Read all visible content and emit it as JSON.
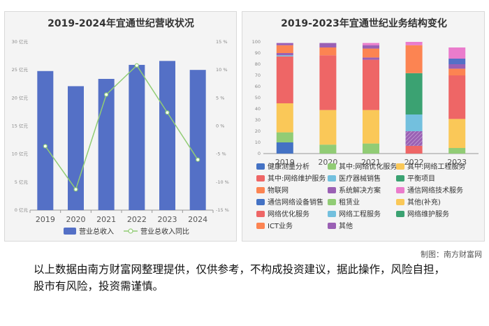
{
  "chart_data": [
    {
      "type": "bar",
      "title": "2019-2024年宜通世纪营收状况",
      "categories": [
        "2019",
        "2020",
        "2021",
        "2022",
        "2023",
        "2024"
      ],
      "series": [
        {
          "name": "营业总收入",
          "kind": "bar",
          "axis": "left",
          "color": "#5470c6",
          "values": [
            24.8,
            22.1,
            23.4,
            25.9,
            26.6,
            25.0
          ]
        },
        {
          "name": "营业总收入同比",
          "kind": "line",
          "axis": "right",
          "color": "#91cc75",
          "values": [
            -3.6,
            -11.3,
            5.6,
            10.8,
            2.4,
            -6.0
          ]
        }
      ],
      "y_left": {
        "min": 0,
        "max": 30,
        "ticks": [
          "0 亿元",
          "5 亿元",
          "10 亿元",
          "15 亿元",
          "20 亿元",
          "25 亿元",
          "30 亿元"
        ]
      },
      "y_right": {
        "min": -15,
        "max": 15,
        "ticks": [
          "-15 %",
          "-10 %",
          "-5 %",
          "0 %",
          "5 %",
          "10 %",
          "15 %"
        ]
      },
      "grid": false,
      "legend": "bottom"
    },
    {
      "type": "bar",
      "stacked": true,
      "title": "2019-2023年宜通世纪业务结构变化",
      "categories": [
        "2019",
        "2020",
        "2021",
        "2022",
        "2023"
      ],
      "y_ticks": [
        "0",
        "10",
        "20",
        "30",
        "40",
        "50",
        "60",
        "70",
        "80",
        "90",
        "100"
      ],
      "ylim": [
        0,
        100
      ],
      "legend": "bottom",
      "series": [
        {
          "name": "健康测量分析",
          "color": "#4472c4",
          "values": [
            10,
            0,
            0,
            0,
            0
          ]
        },
        {
          "name": "其中:网络优化服务",
          "color": "#91cc75",
          "values": [
            9,
            8,
            9,
            0,
            5
          ]
        },
        {
          "name": "其中:网络工程服务",
          "color": "#fac858",
          "values": [
            26,
            31,
            30,
            0,
            26
          ]
        },
        {
          "name": "其中:网络维护服务",
          "color": "#ee6666",
          "values": [
            42,
            49,
            45,
            0,
            39
          ]
        },
        {
          "name": "医疗器械销售",
          "color": "#73c0de",
          "values": [
            1,
            0,
            0,
            0,
            0
          ]
        },
        {
          "name": "平衡项目",
          "color": "#3ba272",
          "values": [
            0,
            0,
            0,
            0,
            0
          ]
        },
        {
          "name": "物联网",
          "color": "#fc8452",
          "values": [
            0,
            0,
            0,
            0,
            0
          ]
        },
        {
          "name": "系统解决方案",
          "color": "#9a60b4",
          "values": [
            2,
            0,
            2,
            0,
            0
          ]
        },
        {
          "name": "通信网络技术服务",
          "color": "#ea7ccc",
          "values": [
            0,
            0,
            0,
            0,
            0
          ]
        },
        {
          "name": "通信网络设备销售",
          "color": "#4472c4",
          "values": [
            0,
            0,
            0,
            0,
            0
          ]
        },
        {
          "name": "租赁业",
          "color": "#91cc75",
          "values": [
            0,
            0,
            0,
            0,
            0
          ]
        },
        {
          "name": "其他(补充)",
          "color": "#fac858",
          "values": [
            0,
            0,
            0,
            0,
            0
          ]
        },
        {
          "name": "网络优化服务",
          "color": "#ee6666",
          "values": [
            0,
            0,
            0,
            7,
            0
          ]
        },
        {
          "name": "网络工程服务",
          "color": "#73c0de",
          "values": [
            0,
            0,
            0,
            28,
            0
          ]
        },
        {
          "name": "网络维护服务",
          "color": "#3ba272",
          "values": [
            0,
            0,
            0,
            37,
            0
          ]
        },
        {
          "name": "ICT业务",
          "color": "#fc8452",
          "values": [
            7,
            7,
            8,
            25,
            6
          ]
        },
        {
          "name": "其他",
          "color": "#9a60b4",
          "values": [
            2,
            4,
            3,
            0,
            4
          ]
        },
        {
          "name": "",
          "color": "#5470c6",
          "values": [
            0,
            0,
            0,
            0,
            5
          ]
        },
        {
          "name": "",
          "color": "#ea7ccc",
          "values": [
            0,
            0,
            2,
            3,
            10
          ]
        }
      ],
      "hatched_overlay": [
        {
          "category": "2019",
          "color": "#4472c4",
          "values": [
            10,
            0
          ]
        },
        {
          "category": "2022",
          "color": "#9a60b4",
          "range": [
            7,
            20
          ]
        }
      ]
    }
  ],
  "credit": "制图：南方财富网",
  "disclaimer": "以上数据由南方财富网整理提供，仅供参考，不构成投资建议，据此操作，风险自担，股市有风险，投资需谨慎。"
}
